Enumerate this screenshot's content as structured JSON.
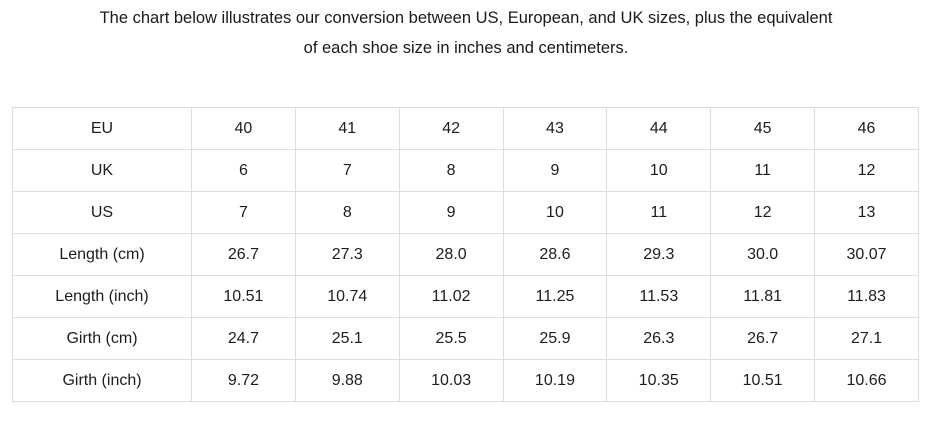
{
  "intro": {
    "line1": "The chart below illustrates our conversion between US, European, and UK sizes, plus the equivalent",
    "line2": "of each shoe size in inches and centimeters."
  },
  "colors": {
    "background": "#ffffff",
    "text": "#1d1d1d",
    "table_border": "#dddddd"
  },
  "chart_data": {
    "type": "table",
    "caption": "The chart below illustrates our conversion between US, European, and UK sizes, plus the equivalent of each shoe size in inches and centimeters.",
    "legend_position": "none",
    "grid": "full-cell-borders",
    "rows": [
      {
        "label": "EU",
        "values": [
          "40",
          "41",
          "42",
          "43",
          "44",
          "45",
          "46"
        ]
      },
      {
        "label": "UK",
        "values": [
          "6",
          "7",
          "8",
          "9",
          "10",
          "11",
          "12"
        ]
      },
      {
        "label": "US",
        "values": [
          "7",
          "8",
          "9",
          "10",
          "11",
          "12",
          "13"
        ]
      },
      {
        "label": "Length (cm)",
        "values": [
          "26.7",
          "27.3",
          "28.0",
          "28.6",
          "29.3",
          "30.0",
          "30.07"
        ]
      },
      {
        "label": "Length (inch)",
        "values": [
          "10.51",
          "10.74",
          "11.02",
          "11.25",
          "11.53",
          "11.81",
          "11.83"
        ]
      },
      {
        "label": "Girth (cm)",
        "values": [
          "24.7",
          "25.1",
          "25.5",
          "25.9",
          "26.3",
          "26.7",
          "27.1"
        ]
      },
      {
        "label": "Girth (inch)",
        "values": [
          "9.72",
          "9.88",
          "10.03",
          "10.19",
          "10.35",
          "10.51",
          "10.66"
        ]
      }
    ]
  }
}
